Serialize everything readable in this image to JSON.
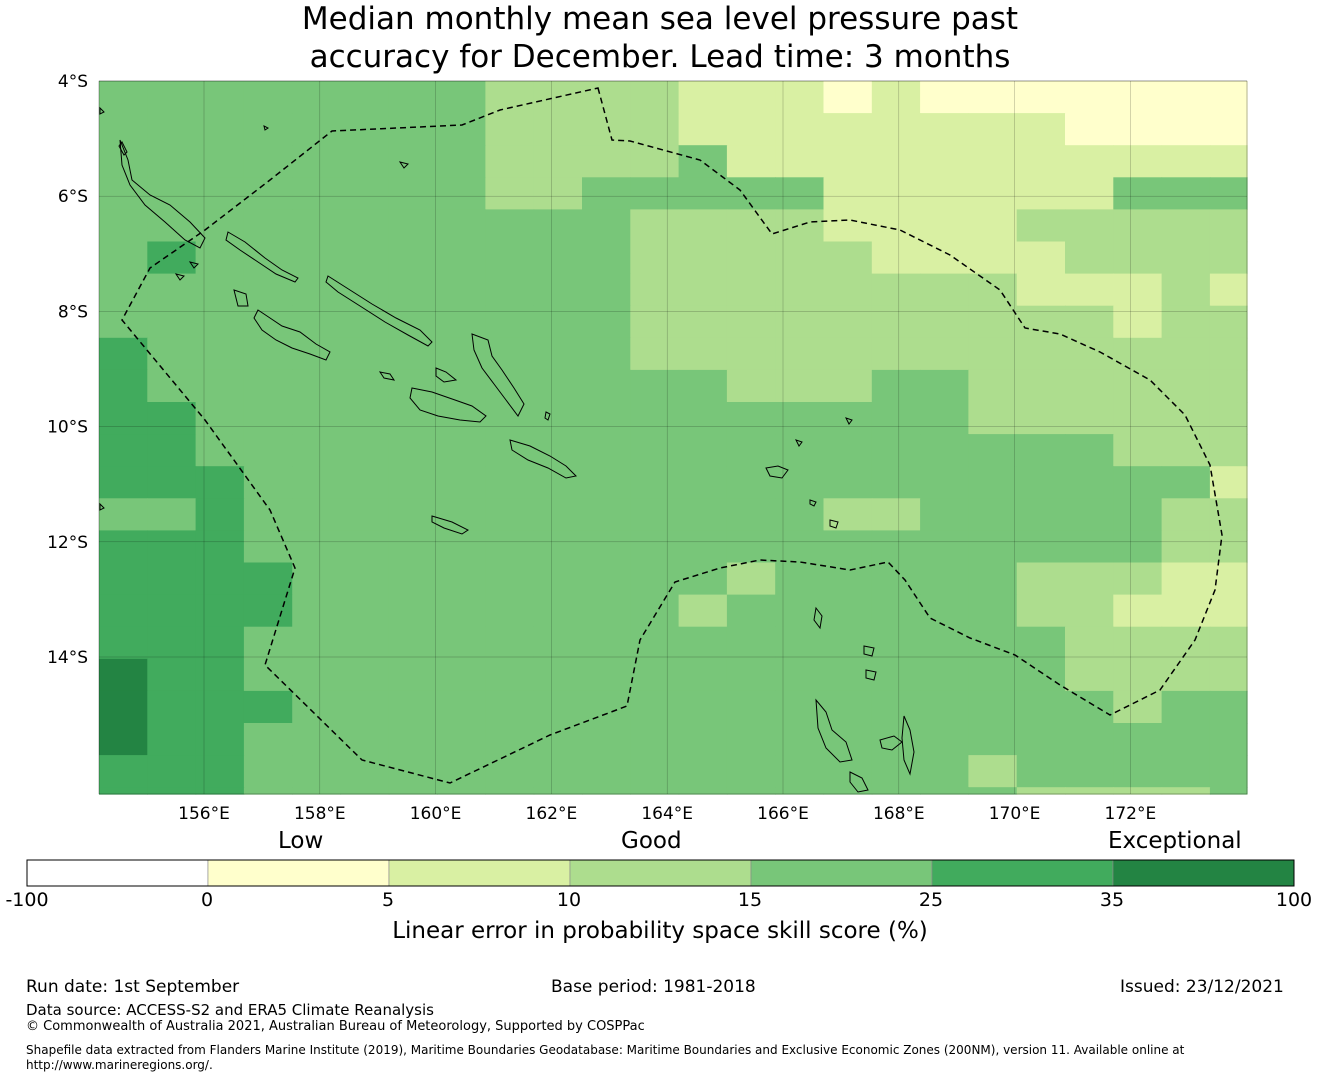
{
  "title_line1": "Median monthly mean sea level pressure past",
  "title_line2": "accuracy for December. Lead time: 3 months",
  "map": {
    "lon_ticks": [
      "156°E",
      "158°E",
      "160°E",
      "162°E",
      "164°E",
      "166°E",
      "168°E",
      "170°E",
      "172°E"
    ],
    "lat_ticks": [
      "4°S",
      "6°S",
      "8°S",
      "10°S",
      "12°S",
      "14°S"
    ]
  },
  "colorbar": {
    "category_labels": {
      "low": "Low",
      "good": "Good",
      "exceptional": "Exceptional"
    },
    "ticks": [
      "-100",
      "0",
      "5",
      "10",
      "15",
      "25",
      "35",
      "100"
    ],
    "colors": [
      "#ffffff",
      "#ffffcc",
      "#d9f0a3",
      "#addd8e",
      "#78c679",
      "#41ab5d",
      "#238443"
    ],
    "title": "Linear error in probability space skill score (%)"
  },
  "footer": {
    "run_date": "Run date: 1st September",
    "base_period": "Base period: 1981-2018",
    "issued": "Issued: 23/12/2021",
    "data_source": "Data source: ACCESS-S2 and ERA5 Climate Reanalysis",
    "copyright": "© Commonwealth of Australia 2021, Australian Bureau of Meteorology, Supported by COSPPac",
    "shapefile": "Shapefile data extracted from Flanders Marine Institute (2019), Maritime Boundaries Geodatabase: Maritime Boundaries and Exclusive Economic Zones (200NM), version 11. Available online at http://www.marineregions.org/."
  }
}
